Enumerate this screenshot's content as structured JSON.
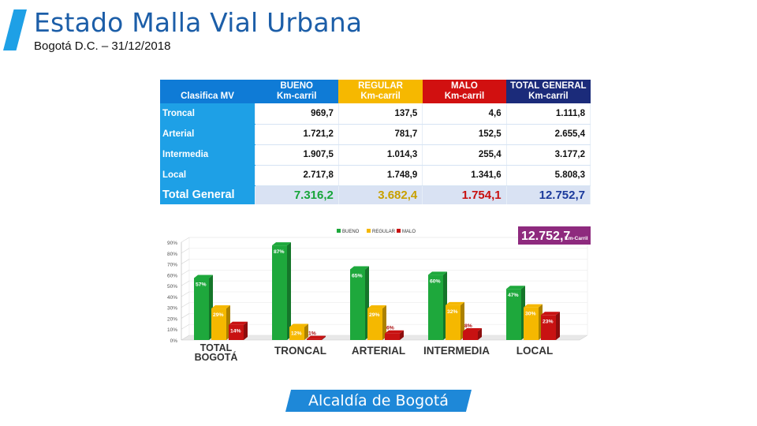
{
  "slide": {
    "title": "Estado Malla Vial Urbana",
    "subtitle": "Bogotá D.C. – 31/12/2018",
    "logo_text": "Alcaldía de Bogotá",
    "accent_color": "#1ea0e6",
    "title_color": "#1c5ea8"
  },
  "table": {
    "headers": {
      "category": "Clasifica MV",
      "bueno": [
        "BUENO",
        "Km-carril"
      ],
      "regular": [
        "REGULAR",
        "Km-carril"
      ],
      "malo": [
        "MALO",
        "Km-carril"
      ],
      "total": [
        "TOTAL GENERAL",
        "Km-carril"
      ]
    },
    "rows": [
      {
        "category": "Troncal",
        "bueno": "969,7",
        "regular": "137,5",
        "malo": "4,6",
        "total": "1.111,8"
      },
      {
        "category": "Arterial",
        "bueno": "1.721,2",
        "regular": "781,7",
        "malo": "152,5",
        "total": "2.655,4"
      },
      {
        "category": "Intermedia",
        "bueno": "1.907,5",
        "regular": "1.014,3",
        "malo": "255,4",
        "total": "3.177,2"
      },
      {
        "category": "Local",
        "bueno": "2.717,8",
        "regular": "1.748,9",
        "malo": "1.341,6",
        "total": "5.808,3"
      }
    ],
    "total_row": {
      "category": "Total General",
      "bueno": "7.316,2",
      "regular": "3.682,4",
      "malo": "1.754,1",
      "total": "12.752,7"
    }
  },
  "chart_data": {
    "type": "bar",
    "categories": [
      "TOTAL BOGOTÁ",
      "TRONCAL",
      "ARTERIAL",
      "INTERMEDIA",
      "LOCAL"
    ],
    "series": [
      {
        "name": "BUENO",
        "color": "#1ea83c",
        "values": [
          57,
          87,
          65,
          60,
          47
        ],
        "labels": [
          "57%",
          "87%",
          "65%",
          "60%",
          "47%"
        ]
      },
      {
        "name": "REGULAR",
        "color": "#f5b800",
        "values": [
          29,
          12,
          29,
          32,
          30
        ],
        "labels": [
          "29%",
          "12%",
          "29%",
          "32%",
          "30%"
        ]
      },
      {
        "name": "MALO",
        "color": "#c81212",
        "values": [
          14,
          1,
          6,
          8,
          23
        ],
        "labels": [
          "14%",
          "1%",
          "6%",
          "8%",
          "23%"
        ]
      }
    ],
    "ylim": [
      0,
      90
    ],
    "y_ticks": [
      "0%",
      "10%",
      "20%",
      "30%",
      "40%",
      "50%",
      "60%",
      "70%",
      "80%",
      "90%"
    ],
    "legend": "top",
    "badge": {
      "value": "12.752,7",
      "unit": "Km-Carril",
      "color": "#8e2a7e"
    }
  }
}
